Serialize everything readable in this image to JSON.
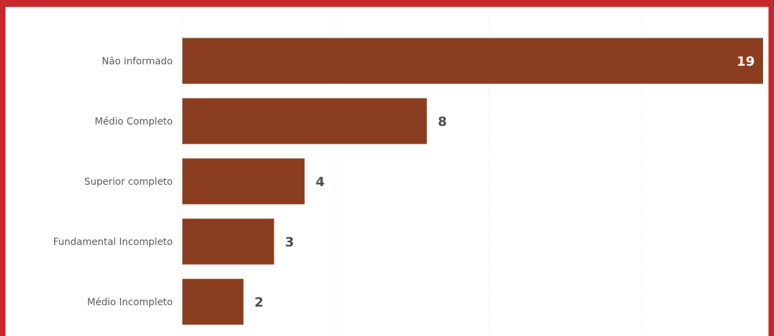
{
  "chart_data": {
    "type": "bar",
    "orientation": "horizontal",
    "categories": [
      "Não informado",
      "Médio Completo",
      "Superior completo",
      "Fundamental Incompleto",
      "Médio Incompleto"
    ],
    "values": [
      19,
      8,
      4,
      3,
      2
    ],
    "xlim": [
      0,
      19
    ],
    "grid": true,
    "legend": "none"
  },
  "colors": {
    "bar": "#8b3e1f",
    "frame": "#c8272e",
    "background": "#ffffff"
  }
}
